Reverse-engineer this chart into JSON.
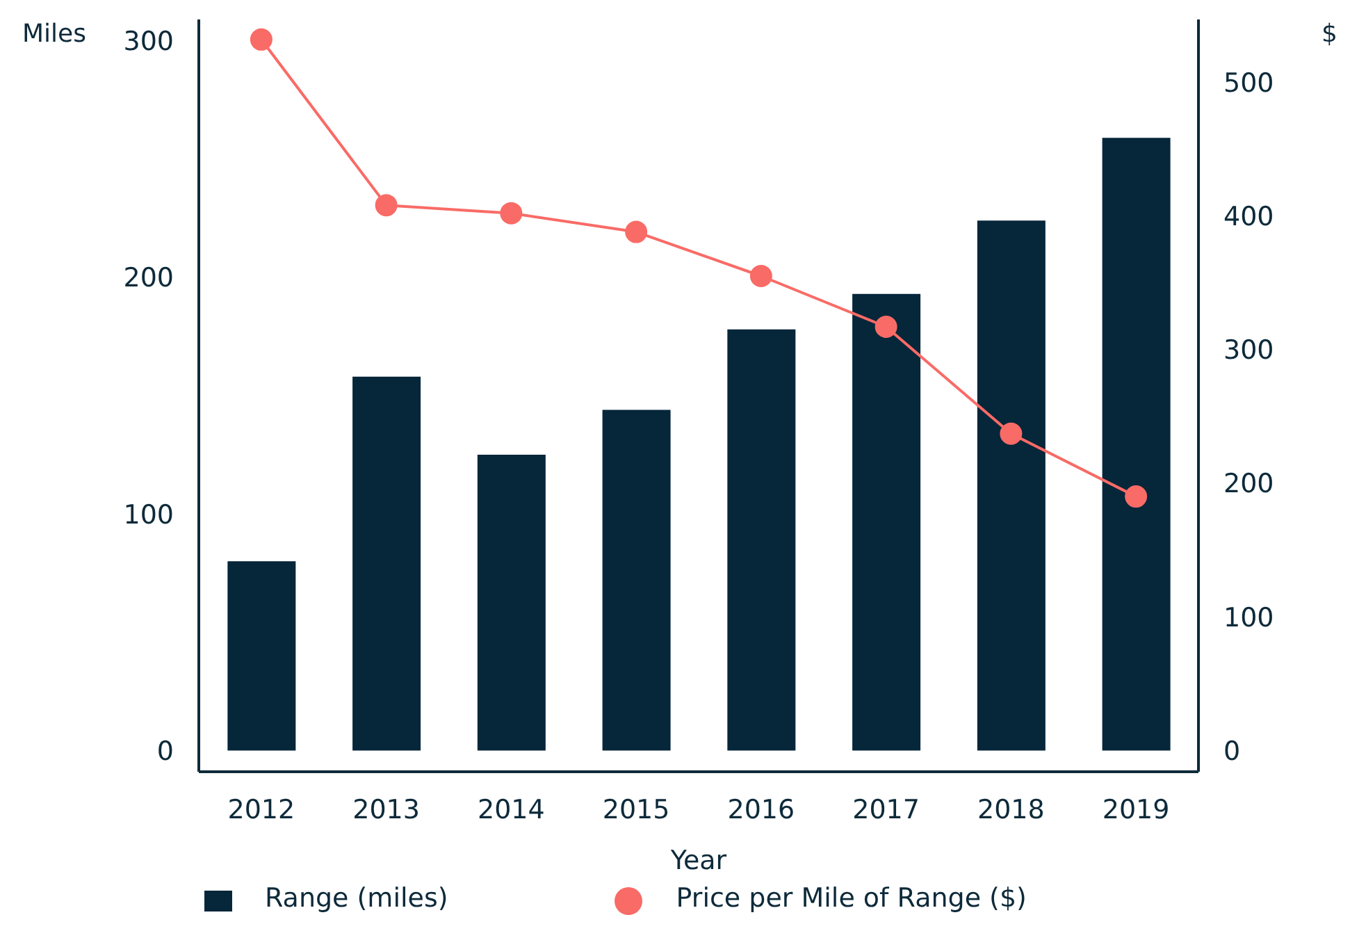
{
  "chart_data": {
    "type": "bar",
    "xlabel": "Year",
    "ylabel": "Miles",
    "y2label": "$",
    "categories": [
      "2012",
      "2013",
      "2014",
      "2015",
      "2016",
      "2017",
      "2018",
      "2019"
    ],
    "series": [
      {
        "name": "Range (miles)",
        "color": "#06263a",
        "values": [
          80,
          158,
          125,
          144,
          178,
          193,
          224,
          259
        ]
      },
      {
        "name": "Price per Mile of Range ($)",
        "type": "line",
        "axis": "y2",
        "color": "#f96b66",
        "marker": "circle",
        "values": [
          532,
          408,
          402,
          388,
          355,
          317,
          237,
          190
        ]
      }
    ],
    "ylim": [
      -9,
      309
    ],
    "yticks": [
      0,
      100,
      200,
      300
    ],
    "y2lim": [
      -16,
      547
    ],
    "y2ticks": [
      0,
      100,
      200,
      300,
      400,
      500
    ],
    "grid": false,
    "legend": "bottom"
  }
}
